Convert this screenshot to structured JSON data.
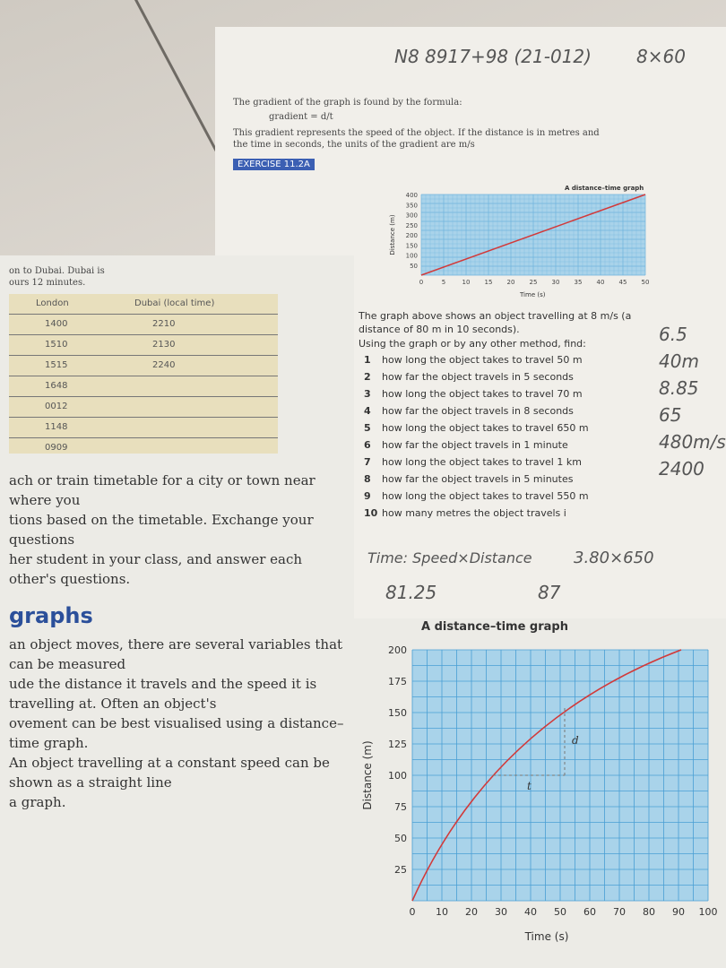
{
  "right_page": {
    "intro_line1": "The gradient of the graph is found by the formula:",
    "formula": "gradient = d/t",
    "intro_line2": "This gradient represents the speed of the object. If the distance is in metres and",
    "intro_line3": "the time in seconds, the units of the gradient are m/s",
    "exercise_badge": "EXERCISE 11.2A",
    "graph": {
      "title": "A distance–time graph",
      "ylabel": "Distance (m)",
      "xlabel": "Time (s)",
      "y_ticks": [
        "400",
        "350",
        "300",
        "250",
        "200",
        "150",
        "100",
        "50"
      ],
      "x_ticks": [
        "0",
        "5",
        "10",
        "15",
        "20",
        "25",
        "30",
        "35",
        "40",
        "45",
        "50"
      ]
    },
    "question_intro": "The graph above shows an object travelling at 8 m/s (a distance of 80 m in 10 seconds).",
    "question_lead": "Using the graph or by any other method, find:",
    "questions": [
      {
        "n": "1",
        "text": "how long the object takes to travel 50 m"
      },
      {
        "n": "2",
        "text": "how far the object travels in 5 seconds"
      },
      {
        "n": "3",
        "text": "how long the object takes to travel 70 m"
      },
      {
        "n": "4",
        "text": "how far the object travels in 8 seconds"
      },
      {
        "n": "5",
        "text": "how long the object takes to travel 650 m"
      },
      {
        "n": "6",
        "text": "how far the object travels in 1 minute"
      },
      {
        "n": "7",
        "text": "how long the object takes to travel 1 km"
      },
      {
        "n": "8",
        "text": "how far the object travels in 5 minutes"
      },
      {
        "n": "9",
        "text": "how long the object takes to travel 550 m"
      },
      {
        "n": "10",
        "text": "how many metres the object travels i"
      }
    ],
    "handwriting": [
      "N8 8917+98 (21-012)",
      "8×60",
      "6.5",
      "40m",
      "8.85",
      "65",
      "480m/s",
      "2400",
      "Time: Speed×Distance",
      "3.80×650",
      "81.25",
      "87"
    ]
  },
  "left_page": {
    "timetable": {
      "header_fragment": "on to Dubai. Dubai is",
      "header_fragment2": "ours 12 minutes.",
      "col_london": "London",
      "col_dubai": "Dubai (local time)",
      "rows": [
        [
          "1400",
          "2210"
        ],
        [
          "1510",
          "2130"
        ],
        [
          "1515",
          "2240"
        ],
        [
          "1648",
          ""
        ],
        [
          "0012",
          ""
        ],
        [
          "1148",
          ""
        ],
        [
          "0909",
          ""
        ]
      ]
    },
    "para1": [
      "ach or train timetable for a city or town near where you",
      "tions based on the timetable. Exchange your questions",
      "her student in your class, and answer each other's questions."
    ],
    "section_heading": "graphs",
    "para2": [
      "an object moves, there are several variables that can be measured",
      "ude the distance it travels and the speed it is travelling at. Often an object's",
      "ovement can be best visualised using a distance–time graph.",
      "An object travelling at a constant speed can be shown as a straight line",
      "a graph."
    ],
    "graph": {
      "title": "A distance–time graph",
      "ylabel": "Distance (m)",
      "xlabel": "Time (s)",
      "y_ticks": [
        "200",
        "175",
        "150",
        "125",
        "100",
        "75",
        "50",
        "25"
      ],
      "x_ticks": [
        "0",
        "10",
        "20",
        "30",
        "40",
        "50",
        "60",
        "70",
        "80",
        "90",
        "100"
      ],
      "label_d": "d",
      "label_t": "t"
    }
  },
  "colors": {
    "grid_fill": "#a9d3ea",
    "grid_line": "#4a9fd4",
    "line": "#d23a3a",
    "badge": "#3b5fb3",
    "table": "#e8dfbd"
  }
}
